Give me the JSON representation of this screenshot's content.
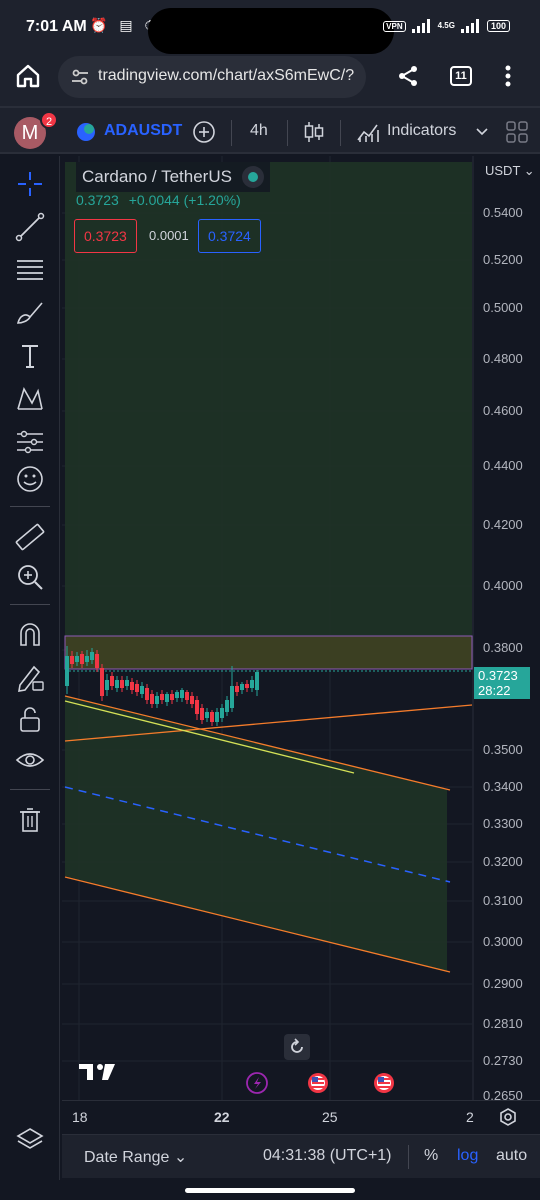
{
  "status_bar": {
    "time": "7:01 AM",
    "vpn": "VPN",
    "network": "4.5G",
    "battery": "100"
  },
  "browser": {
    "url": "tradingview.com/chart/axS6mEwC/?",
    "tab_count": "11"
  },
  "toolbar": {
    "avatar_letter": "M",
    "notification_count": "2",
    "symbol": "ADAUSDT",
    "interval": "4h",
    "indicators_label": "Indicators"
  },
  "legend": {
    "name": "Cardano / TetherUS",
    "price": "0.3723",
    "change": "+0.0044 (+1.20%)",
    "sell_price": "0.3723",
    "spread": "0.0001",
    "buy_price": "0.3724"
  },
  "price_axis": {
    "currency": "USDT",
    "labels": [
      "0.5400",
      "0.5200",
      "0.5000",
      "0.4800",
      "0.4600",
      "0.4400",
      "0.4200",
      "0.4000",
      "0.3800",
      "0.3500",
      "0.3400",
      "0.3300",
      "0.3200",
      "0.3100",
      "0.3000",
      "0.2900",
      "0.2810",
      "0.2730",
      "0.2650"
    ],
    "last_price": "0.3723",
    "countdown": "28:22"
  },
  "time_axis": {
    "labels": [
      "18",
      "22",
      "25",
      "2"
    ]
  },
  "bottom_bar": {
    "date_range": "Date Range",
    "clock": "04:31:38 (UTC+1)",
    "percent": "%",
    "log": "log",
    "auto": "auto"
  },
  "colors": {
    "up": "#26a69a",
    "down": "#f23645",
    "accent": "#2962ff",
    "channel_line": "#f57c2b",
    "zone_fill": "#2e3b2a",
    "highlight_zone": "#4a4a2a"
  }
}
